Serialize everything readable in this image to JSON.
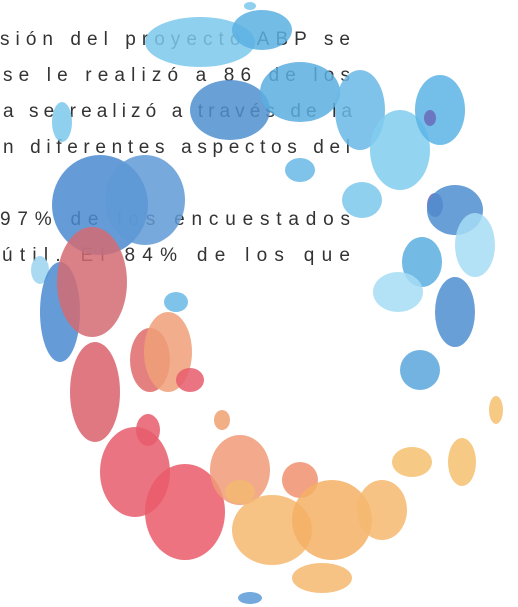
{
  "body": {
    "lines": [
      "sión del proyecto ABP se",
      "se le realizó a 86 de los",
      "a se realizó a través de la",
      "n diferentes aspectos del",
      "97% de los encuestados",
      "útil. El 84% de los que"
    ]
  }
}
